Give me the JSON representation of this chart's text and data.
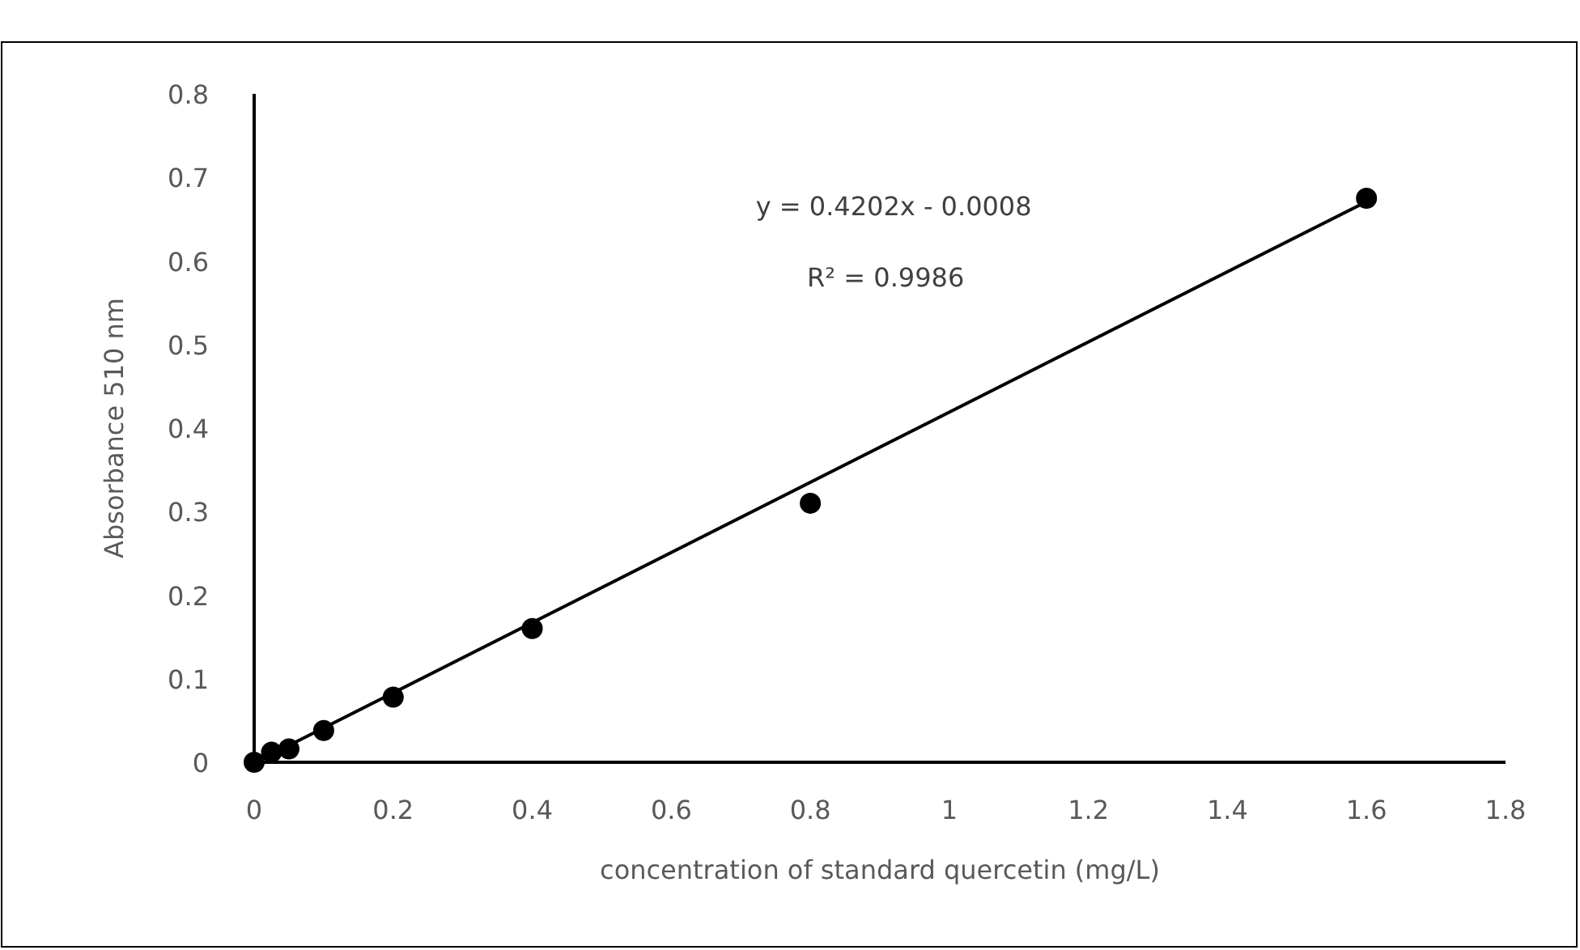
{
  "chart_data": {
    "type": "scatter",
    "xlabel": "concentration of standard quercetin (mg/L)",
    "ylabel": "Absorbance 510 nm",
    "annotations": [
      "y = 0.4202x - 0.0008",
      "R² = 0.9986"
    ],
    "xlim": [
      0,
      1.8
    ],
    "xticks": [
      0,
      0.2,
      0.4,
      0.6,
      0.8,
      1,
      1.2,
      1.4,
      1.6,
      1.8
    ],
    "ylim": [
      0,
      0.8
    ],
    "yticks": [
      0,
      0.1,
      0.2,
      0.3,
      0.4,
      0.5,
      0.6,
      0.7,
      0.8
    ],
    "grid": false,
    "series": [
      {
        "marker": "circle",
        "color": "#000000",
        "x": [
          0,
          0.025,
          0.05,
          0.1,
          0.2,
          0.4,
          0.8,
          1.6
        ],
        "values": [
          0,
          0.012,
          0.016,
          0.038,
          0.078,
          0.16,
          0.31,
          0.675
        ]
      },
      {
        "type": "line",
        "color": "#000000",
        "x": [
          0.002,
          1.6
        ],
        "values": [
          0,
          0.671
        ],
        "line_style": "solid",
        "marker": "none"
      }
    ]
  }
}
